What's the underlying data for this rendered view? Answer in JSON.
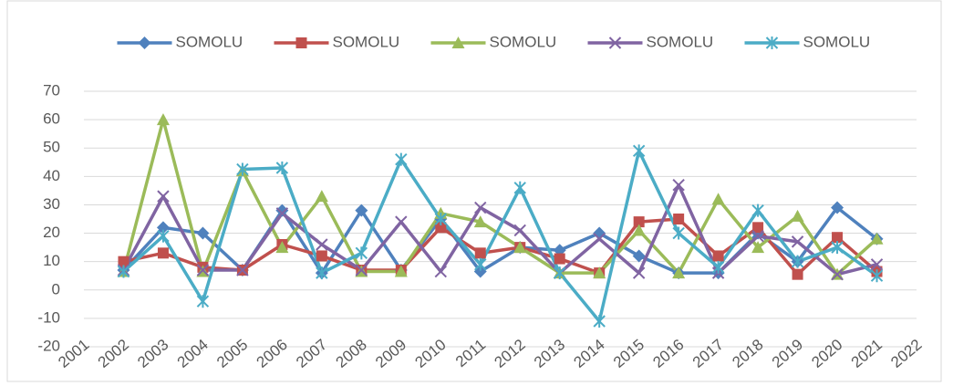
{
  "chart_data": {
    "type": "line",
    "x": [
      2002,
      2003,
      2004,
      2005,
      2006,
      2007,
      2008,
      2009,
      2010,
      2011,
      2012,
      2013,
      2014,
      2015,
      2016,
      2017,
      2018,
      2019,
      2020,
      2021
    ],
    "series": [
      {
        "name": "SOMOLU",
        "color": "#4f81bd",
        "marker": "diamond",
        "values": [
          7,
          22,
          20,
          7,
          28,
          6,
          28,
          7,
          25,
          6.5,
          15,
          14,
          20,
          12,
          6,
          6,
          20,
          10,
          29,
          18
        ]
      },
      {
        "name": "SOMOLU",
        "color": "#c0504d",
        "marker": "square",
        "values": [
          10,
          13,
          8,
          7,
          16,
          12,
          7,
          7,
          22,
          13,
          15,
          11,
          6,
          24,
          25,
          12,
          22,
          5.5,
          18.5,
          6.5
        ]
      },
      {
        "name": "SOMOLU",
        "color": "#9bbb59",
        "marker": "triangle",
        "values": [
          6.5,
          60,
          6.5,
          42,
          15,
          33,
          6.5,
          6.5,
          27,
          24,
          15,
          6,
          6,
          21,
          6,
          32,
          15,
          26,
          5.5,
          18
        ]
      },
      {
        "name": "SOMOLU",
        "color": "#8064a2",
        "marker": "x",
        "values": [
          7,
          33,
          7,
          7,
          27,
          16,
          7,
          24,
          6.5,
          29,
          21,
          6,
          18,
          6,
          37,
          6,
          19,
          17,
          5.5,
          9
        ]
      },
      {
        "name": "SOMOLU",
        "color": "#4bacc6",
        "marker": "star",
        "values": [
          6.5,
          19,
          -4,
          42.5,
          43,
          6,
          13,
          46,
          25,
          9,
          36,
          6,
          -11,
          49,
          20,
          8,
          28,
          10,
          15,
          5
        ]
      }
    ],
    "xlim": [
      2001,
      2022
    ],
    "xticks": [
      2001,
      2002,
      2003,
      2004,
      2005,
      2006,
      2007,
      2008,
      2009,
      2010,
      2011,
      2012,
      2013,
      2014,
      2015,
      2016,
      2017,
      2018,
      2019,
      2020,
      2021,
      2022
    ],
    "ylim": [
      -20,
      70
    ],
    "yticks": [
      -20,
      -10,
      0,
      10,
      20,
      30,
      40,
      50,
      60,
      70
    ],
    "grid": true,
    "legend": "top"
  }
}
